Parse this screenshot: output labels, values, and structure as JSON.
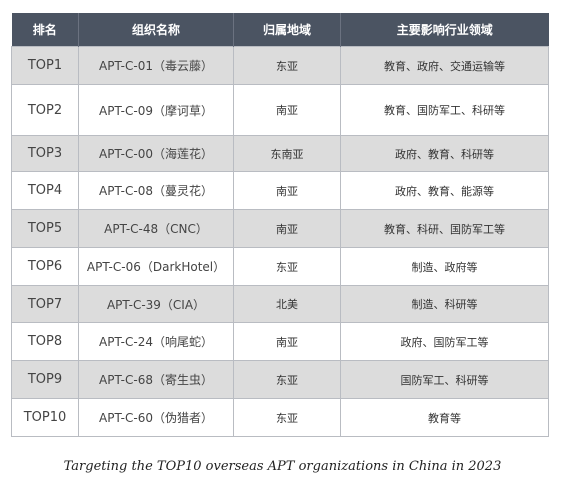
{
  "table": {
    "headers": [
      "排名",
      "组织名称",
      "归属地域",
      "主要影响行业领域"
    ],
    "rows": [
      {
        "rank": "TOP1",
        "org": "APT-C-01（毒云藤）",
        "region": "东亚",
        "industry": "教育、政府、交通运输等",
        "shaded": true
      },
      {
        "rank": "TOP2",
        "org": "APT-C-09（摩诃草）",
        "region": "南亚",
        "industry": "教育、国防军工、科研等",
        "shaded": false
      },
      {
        "rank": "TOP3",
        "org": "APT-C-00（海莲花）",
        "region": "东南亚",
        "industry": "政府、教育、科研等",
        "shaded": true
      },
      {
        "rank": "TOP4",
        "org": "APT-C-08（蔓灵花）",
        "region": "南亚",
        "industry": "政府、教育、能源等",
        "shaded": false
      },
      {
        "rank": "TOP5",
        "org": "APT-C-48（CNC）",
        "region": "南亚",
        "industry": "教育、科研、国防军工等",
        "shaded": true
      },
      {
        "rank": "TOP6",
        "org": "APT-C-06（DarkHotel）",
        "region": "东亚",
        "industry": "制造、政府等",
        "shaded": false
      },
      {
        "rank": "TOP7",
        "org": "APT-C-39（CIA）",
        "region": "北美",
        "industry": "制造、科研等",
        "shaded": true
      },
      {
        "rank": "TOP8",
        "org": "APT-C-24（响尾蛇）",
        "region": "南亚",
        "industry": "政府、国防军工等",
        "shaded": false
      },
      {
        "rank": "TOP9",
        "org": "APT-C-68（寄生虫）",
        "region": "东亚",
        "industry": "国防军工、科研等",
        "shaded": true
      },
      {
        "rank": "TOP10",
        "org": "APT-C-60（伪猎者）",
        "region": "东亚",
        "industry": "教育等",
        "shaded": false
      }
    ]
  },
  "caption": "Targeting the TOP10 overseas APT organizations in China in 2023",
  "colors": {
    "header_bg": "#4b5462",
    "shaded_row": "#dcdcdc",
    "plain_row": "#ffffff",
    "border": "#b9bcc2"
  }
}
